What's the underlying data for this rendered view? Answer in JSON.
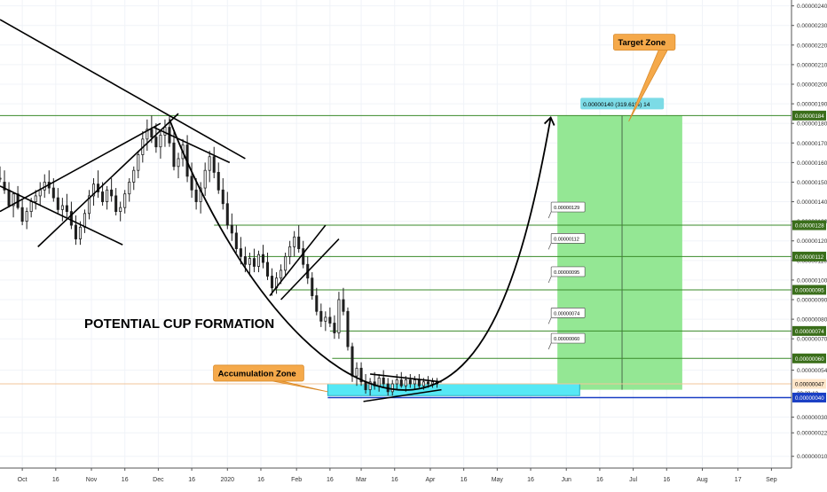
{
  "colors": {
    "background": "#ffffff",
    "grid": "#f0f3f8",
    "candle": "#1f1f1f",
    "trendline": "#000000",
    "level_line": "#3a8a2a",
    "level_badge": "#3a6e1a",
    "blue_line": "#1a3fc4",
    "blue_badge": "#1a3fc4",
    "cyan_zone": "#56e8f5",
    "green_zone": "#8ee68e",
    "callout": "#f5a94a",
    "price_label_bg": "#7cdbe6"
  },
  "chart_data": {
    "type": "candlestick",
    "title": "POTENTIAL CUP FORMATION",
    "x_tick_labels": [
      "Oct",
      "16",
      "Nov",
      "16",
      "Dec",
      "16",
      "2020",
      "16",
      "Feb",
      "16",
      "Mar",
      "16",
      "Apr",
      "16",
      "May",
      "16",
      "Jun",
      "16",
      "Jul",
      "16",
      "Aug",
      "17",
      "Sep"
    ],
    "x_tick_days": [
      0,
      15,
      31,
      46,
      61,
      76,
      92,
      107,
      123,
      138,
      152,
      167,
      183,
      198,
      213,
      228,
      244,
      259,
      274,
      289,
      305,
      321,
      336
    ],
    "y_tick_labels": [
      "0.00000240",
      "0.00000230",
      "0.00000220",
      "0.00000210",
      "0.00000200",
      "0.00000190",
      "0.00000180",
      "0.00000170",
      "0.00000160",
      "0.00000150",
      "0.00000140",
      "0.00000130",
      "0.00000120",
      "0.00000110",
      "0.00000100",
      "0.00000090",
      "0.00000080",
      "0.00000070",
      "0.00000054",
      "0.00000030",
      "0.00000022",
      "0.00000010"
    ],
    "y_tick_values": [
      240,
      230,
      220,
      210,
      200,
      190,
      180,
      170,
      160,
      150,
      140,
      130,
      120,
      110,
      100,
      90,
      80,
      70,
      54,
      30,
      22,
      10
    ],
    "price_unit": "1e-8",
    "ylim": [
      4,
      243
    ],
    "xlim": [
      -10,
      345
    ],
    "horizontal_levels": [
      {
        "label": "0.00000184",
        "value": 184,
        "from_day": -20
      },
      {
        "label": "0.00000128",
        "value": 128,
        "from_day": 86
      },
      {
        "label": "0.00000112",
        "value": 112,
        "from_day": 101
      },
      {
        "label": "0.00000095",
        "value": 95,
        "from_day": 112
      },
      {
        "label": "0.00000074",
        "value": 74,
        "from_day": 138
      },
      {
        "label": "0.00000060",
        "value": 60,
        "from_day": 139
      }
    ],
    "current_price": {
      "label": "0.00000047",
      "value": 47,
      "countdown": "20:23:12"
    },
    "support": {
      "label": "0.00000040",
      "value": 40
    },
    "level_notes": [
      {
        "label": "0.00000129",
        "day": 238,
        "value": 128
      },
      {
        "label": "0.00000112",
        "day": 238,
        "value": 112
      },
      {
        "label": "0.00000095",
        "day": 238,
        "value": 95
      },
      {
        "label": "0.00000074",
        "day": 238,
        "value": 74
      },
      {
        "label": "0.00000060",
        "day": 238,
        "value": 61
      }
    ],
    "measure_label": "0.00000140 (319.61%) 14",
    "measure": {
      "x1_day": 240,
      "x2_day": 296,
      "y1": 44,
      "y2": 184,
      "mid_day": 269
    },
    "accumulation_zone": {
      "x1_day": 137,
      "x2_day": 250,
      "y1": 41,
      "y2": 47
    },
    "callouts": [
      {
        "label": "Accumulation Zone",
        "day": 106,
        "value": 52,
        "pointer_day": 137,
        "pointer_value": 43
      },
      {
        "label": "Target Zone",
        "day": 279,
        "value": 221,
        "pointer_day": 272,
        "pointer_value": 181
      }
    ],
    "cup_curve": {
      "start_day": 66,
      "start_value": 182,
      "bottom_day": 175,
      "bottom_value": 44,
      "end_day": 237,
      "end_value": 183
    },
    "trendlines": [
      {
        "x1": -10,
        "y1": 233,
        "x2": 100,
        "y2": 162
      },
      {
        "x1": -10,
        "y1": 148,
        "x2": 45,
        "y2": 118
      },
      {
        "x1": 7,
        "y1": 117,
        "x2": 70,
        "y2": 185
      },
      {
        "x1": -10,
        "y1": 135,
        "x2": 62,
        "y2": 180
      },
      {
        "x1": 59,
        "y1": 178,
        "x2": 93,
        "y2": 160
      },
      {
        "x1": 111,
        "y1": 92,
        "x2": 136,
        "y2": 128
      },
      {
        "x1": 116,
        "y1": 90,
        "x2": 142,
        "y2": 121
      },
      {
        "x1": 156,
        "y1": 52,
        "x2": 188,
        "y2": 48
      },
      {
        "x1": 153,
        "y1": 38,
        "x2": 188,
        "y2": 44
      }
    ],
    "candles": [
      [
        -10,
        152,
        158,
        150,
        152
      ],
      [
        -8,
        150,
        156,
        144,
        146
      ],
      [
        -6,
        146,
        150,
        137,
        138
      ],
      [
        -4,
        138,
        145,
        132,
        144
      ],
      [
        -2,
        144,
        148,
        136,
        137
      ],
      [
        0,
        137,
        141,
        128,
        130
      ],
      [
        2,
        130,
        137,
        126,
        135
      ],
      [
        4,
        135,
        142,
        132,
        140
      ],
      [
        6,
        140,
        146,
        136,
        143
      ],
      [
        8,
        143,
        150,
        138,
        146
      ],
      [
        10,
        146,
        154,
        142,
        150
      ],
      [
        12,
        150,
        156,
        144,
        147
      ],
      [
        14,
        147,
        152,
        140,
        142
      ],
      [
        16,
        142,
        147,
        134,
        136
      ],
      [
        18,
        136,
        142,
        130,
        138
      ],
      [
        20,
        138,
        144,
        132,
        135
      ],
      [
        22,
        135,
        140,
        126,
        128
      ],
      [
        24,
        128,
        133,
        118,
        121
      ],
      [
        26,
        121,
        130,
        118,
        127
      ],
      [
        28,
        127,
        136,
        124,
        134
      ],
      [
        30,
        134,
        146,
        131,
        143
      ],
      [
        32,
        143,
        152,
        138,
        149
      ],
      [
        34,
        149,
        156,
        142,
        145
      ],
      [
        36,
        145,
        150,
        138,
        140
      ],
      [
        38,
        140,
        148,
        136,
        146
      ],
      [
        40,
        146,
        152,
        140,
        143
      ],
      [
        42,
        143,
        147,
        133,
        135
      ],
      [
        44,
        135,
        140,
        130,
        137
      ],
      [
        46,
        137,
        146,
        134,
        144
      ],
      [
        48,
        144,
        152,
        140,
        150
      ],
      [
        50,
        150,
        158,
        146,
        156
      ],
      [
        52,
        156,
        166,
        152,
        164
      ],
      [
        54,
        164,
        176,
        160,
        172
      ],
      [
        56,
        172,
        182,
        166,
        177
      ],
      [
        58,
        177,
        184,
        170,
        173
      ],
      [
        60,
        173,
        180,
        165,
        168
      ],
      [
        62,
        168,
        176,
        162,
        174
      ],
      [
        64,
        174,
        182,
        168,
        178
      ],
      [
        66,
        178,
        184,
        168,
        170
      ],
      [
        68,
        170,
        176,
        156,
        158
      ],
      [
        70,
        158,
        165,
        152,
        162
      ],
      [
        72,
        162,
        172,
        158,
        169
      ],
      [
        74,
        169,
        174,
        150,
        153
      ],
      [
        76,
        153,
        160,
        142,
        146
      ],
      [
        78,
        146,
        152,
        136,
        140
      ],
      [
        80,
        140,
        150,
        134,
        147
      ],
      [
        82,
        147,
        160,
        143,
        156
      ],
      [
        84,
        156,
        166,
        150,
        163
      ],
      [
        86,
        163,
        168,
        152,
        155
      ],
      [
        88,
        155,
        160,
        144,
        146
      ],
      [
        90,
        146,
        152,
        136,
        139
      ],
      [
        92,
        139,
        145,
        126,
        128
      ],
      [
        94,
        128,
        134,
        120,
        124
      ],
      [
        96,
        124,
        128,
        114,
        116
      ],
      [
        98,
        116,
        122,
        108,
        112
      ],
      [
        100,
        112,
        117,
        104,
        108
      ],
      [
        102,
        108,
        114,
        102,
        111
      ],
      [
        104,
        111,
        116,
        104,
        107
      ],
      [
        106,
        107,
        115,
        104,
        113
      ],
      [
        108,
        113,
        118,
        106,
        109
      ],
      [
        110,
        109,
        114,
        100,
        102
      ],
      [
        112,
        102,
        106,
        92,
        96
      ],
      [
        114,
        96,
        104,
        93,
        101
      ],
      [
        116,
        101,
        108,
        98,
        105
      ],
      [
        118,
        105,
        114,
        102,
        112
      ],
      [
        120,
        112,
        120,
        108,
        117
      ],
      [
        122,
        117,
        125,
        112,
        122
      ],
      [
        124,
        122,
        128,
        114,
        116
      ],
      [
        126,
        116,
        120,
        106,
        108
      ],
      [
        128,
        108,
        112,
        98,
        101
      ],
      [
        130,
        101,
        104,
        90,
        92
      ],
      [
        132,
        92,
        96,
        82,
        84
      ],
      [
        134,
        84,
        88,
        76,
        79
      ],
      [
        136,
        79,
        84,
        74,
        81
      ],
      [
        138,
        81,
        86,
        76,
        78
      ],
      [
        140,
        78,
        82,
        70,
        73
      ],
      [
        142,
        73,
        94,
        70,
        90
      ],
      [
        144,
        90,
        96,
        82,
        84
      ],
      [
        146,
        84,
        86,
        64,
        66
      ],
      [
        148,
        66,
        68,
        48,
        51
      ],
      [
        150,
        51,
        58,
        46,
        55
      ],
      [
        152,
        55,
        58,
        46,
        48
      ],
      [
        154,
        48,
        52,
        42,
        44
      ],
      [
        156,
        44,
        50,
        41,
        48
      ],
      [
        158,
        48,
        53,
        44,
        46
      ],
      [
        160,
        46,
        52,
        43,
        50
      ],
      [
        162,
        50,
        54,
        45,
        47
      ],
      [
        164,
        47,
        50,
        41,
        43
      ],
      [
        166,
        43,
        49,
        41,
        47
      ],
      [
        168,
        47,
        52,
        44,
        49
      ],
      [
        170,
        49,
        53,
        45,
        46
      ],
      [
        172,
        46,
        51,
        43,
        49
      ],
      [
        174,
        49,
        52,
        45,
        47
      ],
      [
        176,
        47,
        51,
        44,
        49
      ],
      [
        178,
        49,
        52,
        45,
        46
      ],
      [
        180,
        46,
        50,
        44,
        48
      ],
      [
        182,
        48,
        51,
        45,
        47
      ],
      [
        184,
        47,
        50,
        45,
        48
      ],
      [
        186,
        48,
        50,
        45,
        47
      ]
    ]
  }
}
